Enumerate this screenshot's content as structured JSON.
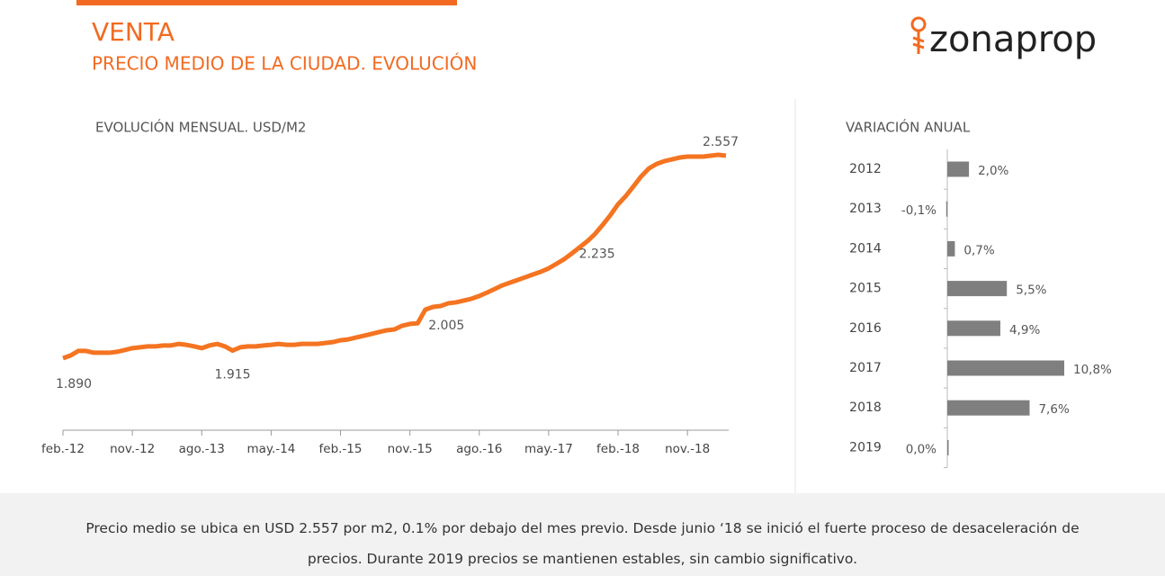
{
  "header": {
    "title": "VENTA",
    "subtitle": "PRECIO MEDIO DE LA CIUDAD. EVOLUCIÓN",
    "logo": "zonaprop"
  },
  "chart_data": [
    {
      "type": "line",
      "title": "EVOLUCIÓN MENSUAL. USD/M2",
      "color": "#f47421",
      "categories": [
        "feb.-12",
        null,
        null,
        null,
        null,
        null,
        null,
        null,
        null,
        "nov.-12",
        null,
        null,
        null,
        null,
        null,
        null,
        null,
        null,
        "ago.-13",
        null,
        null,
        null,
        null,
        null,
        null,
        null,
        null,
        "may.-14",
        null,
        null,
        null,
        null,
        null,
        null,
        null,
        null,
        "feb.-15",
        null,
        null,
        null,
        null,
        null,
        null,
        null,
        null,
        "nov.-15",
        null,
        null,
        null,
        null,
        null,
        null,
        null,
        null,
        "ago.-16",
        null,
        null,
        null,
        null,
        null,
        null,
        null,
        null,
        "may.-17",
        null,
        null,
        null,
        null,
        null,
        null,
        null,
        null,
        "feb.-18",
        null,
        null,
        null,
        null,
        null,
        null,
        null,
        null,
        "nov.-18",
        null,
        null,
        null,
        null,
        null
      ],
      "values": [
        1890,
        1899,
        1914,
        1914,
        1908,
        1908,
        1908,
        1911,
        1917,
        1923,
        1926,
        1929,
        1929,
        1932,
        1932,
        1937,
        1934,
        1929,
        1923,
        1932,
        1937,
        1929,
        1915,
        1926,
        1929,
        1929,
        1932,
        1934,
        1937,
        1934,
        1934,
        1937,
        1937,
        1937,
        1940,
        1943,
        1949,
        1952,
        1958,
        1964,
        1970,
        1976,
        1982,
        1985,
        1997,
        2003,
        2005,
        2050,
        2059,
        2062,
        2071,
        2074,
        2080,
        2086,
        2095,
        2106,
        2118,
        2130,
        2139,
        2148,
        2157,
        2166,
        2175,
        2186,
        2201,
        2216,
        2235,
        2255,
        2275,
        2299,
        2329,
        2361,
        2397,
        2424,
        2456,
        2489,
        2515,
        2530,
        2539,
        2545,
        2551,
        2554,
        2554,
        2554,
        2557,
        2560,
        2557
      ],
      "value_labels": [
        "1.890",
        null,
        null,
        null,
        null,
        null,
        null,
        null,
        null,
        null,
        null,
        null,
        null,
        null,
        null,
        null,
        null,
        null,
        null,
        null,
        null,
        null,
        "1.915",
        null,
        null,
        null,
        null,
        null,
        null,
        null,
        null,
        null,
        null,
        null,
        null,
        null,
        null,
        null,
        null,
        null,
        null,
        null,
        null,
        null,
        null,
        null,
        "2.005",
        null,
        null,
        null,
        null,
        null,
        null,
        null,
        null,
        null,
        null,
        null,
        null,
        null,
        null,
        null,
        null,
        null,
        null,
        null,
        "2.235",
        null,
        null,
        null,
        null,
        null,
        null,
        null,
        null,
        null,
        null,
        null,
        null,
        null,
        null,
        null,
        null,
        null,
        null,
        null,
        "2.557"
      ]
    },
    {
      "type": "hbar",
      "title": "VARIACIÓN ANUAL",
      "color": "#7f7f7f",
      "categories": [
        "2012",
        "2013",
        "2014",
        "2015",
        "2016",
        "2017",
        "2018",
        "2019"
      ],
      "values": [
        2.0,
        -0.1,
        0.7,
        5.5,
        4.9,
        10.8,
        7.6,
        0.0
      ],
      "value_labels": [
        "2,0%",
        "-0,1%",
        "0,7%",
        "5,5%",
        "4,9%",
        "10,8%",
        "7,6%",
        "0,0%"
      ]
    }
  ],
  "footer": {
    "lines": [
      "Precio medio se ubica en USD 2.557 por m2, 0.1% por debajo del mes previo. Desde junio ‘18 se inició el fuerte proceso de desaceleración de",
      "precios. Durante 2019 precios se mantienen estables, sin cambio significativo."
    ]
  }
}
